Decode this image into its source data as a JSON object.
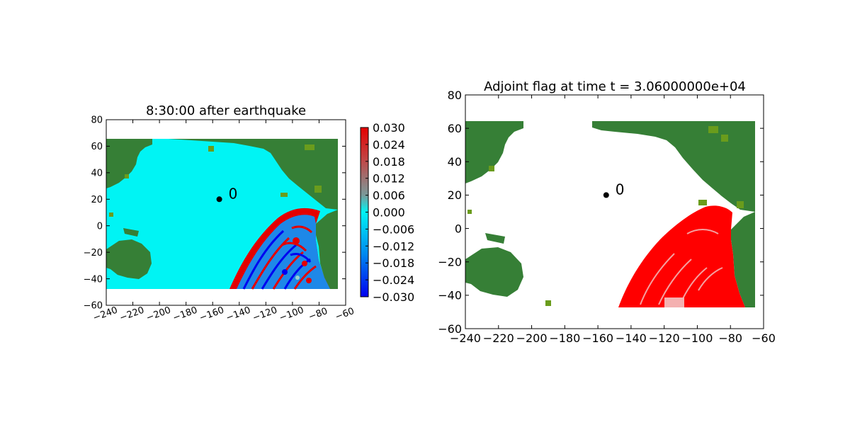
{
  "colors": {
    "land": "#367f36",
    "land_light": "#6a9c1c",
    "ocean_zero": "#00f4f4",
    "flag": "#ff0000",
    "flag_light": "#f4a0a0",
    "marker": "#000000"
  },
  "chart_data": [
    {
      "type": "heatmap",
      "title": "8:30:00 after earthquake",
      "xlabel": "",
      "ylabel": "",
      "xlim": [
        -240,
        -60
      ],
      "ylim": [
        -60,
        80
      ],
      "xticks": [
        "−240",
        "−220",
        "−200",
        "−180",
        "−160",
        "−140",
        "−120",
        "−100",
        "−80",
        "−60"
      ],
      "xtick_values": [
        -240,
        -220,
        -200,
        -180,
        -160,
        -140,
        -120,
        -100,
        -80,
        -60
      ],
      "xtick_rotation": "rotated ~20°",
      "yticks": [
        "−60",
        "−40",
        "−20",
        "0",
        "20",
        "40",
        "60",
        "80"
      ],
      "ytick_values": [
        -60,
        -40,
        -20,
        0,
        20,
        40,
        60,
        80
      ],
      "domain_x": [
        -240,
        -66
      ],
      "domain_y": [
        -47,
        65
      ],
      "grid": false,
      "point": {
        "x": -155,
        "y": 20,
        "label": "0"
      },
      "colorbar": {
        "ticks": [
          "0.030",
          "0.024",
          "0.018",
          "0.012",
          "0.006",
          "0.000",
          "−0.006",
          "−0.012",
          "−0.018",
          "−0.024",
          "−0.030"
        ],
        "tick_values": [
          0.03,
          0.024,
          0.018,
          0.012,
          0.006,
          0.0,
          -0.006,
          -0.012,
          -0.018,
          -0.024,
          -0.03
        ],
        "range": [
          -0.03,
          0.03
        ],
        "colors_high_to_low": [
          "#e50000",
          "#bf4a4a",
          "#7a9a9a",
          "#00f4f4",
          "#0088f0",
          "#0000f0"
        ]
      },
      "wave_front": {
        "region": "south-east Pacific",
        "value_range": [
          -0.03,
          0.03
        ]
      }
    },
    {
      "type": "heatmap",
      "title": "Adjoint flag at time t = 3.06000000e+04",
      "xlabel": "",
      "ylabel": "",
      "xlim": [
        -240,
        -60
      ],
      "ylim": [
        -60,
        80
      ],
      "xticks": [
        "−240",
        "−220",
        "−200",
        "−180",
        "−160",
        "−140",
        "−120",
        "−100",
        "−80",
        "−60"
      ],
      "xtick_values": [
        -240,
        -220,
        -200,
        -180,
        -160,
        -140,
        -120,
        -100,
        -80,
        -60
      ],
      "yticks": [
        "−60",
        "−40",
        "−20",
        "0",
        "20",
        "40",
        "60",
        "80"
      ],
      "ytick_values": [
        -60,
        -40,
        -20,
        0,
        20,
        40,
        60,
        80
      ],
      "domain_x": [
        -240,
        -66
      ],
      "domain_y": [
        -47,
        65
      ],
      "grid": false,
      "point": {
        "x": -155,
        "y": 20,
        "label": "0"
      },
      "flag_region": "south-east Pacific"
    }
  ]
}
